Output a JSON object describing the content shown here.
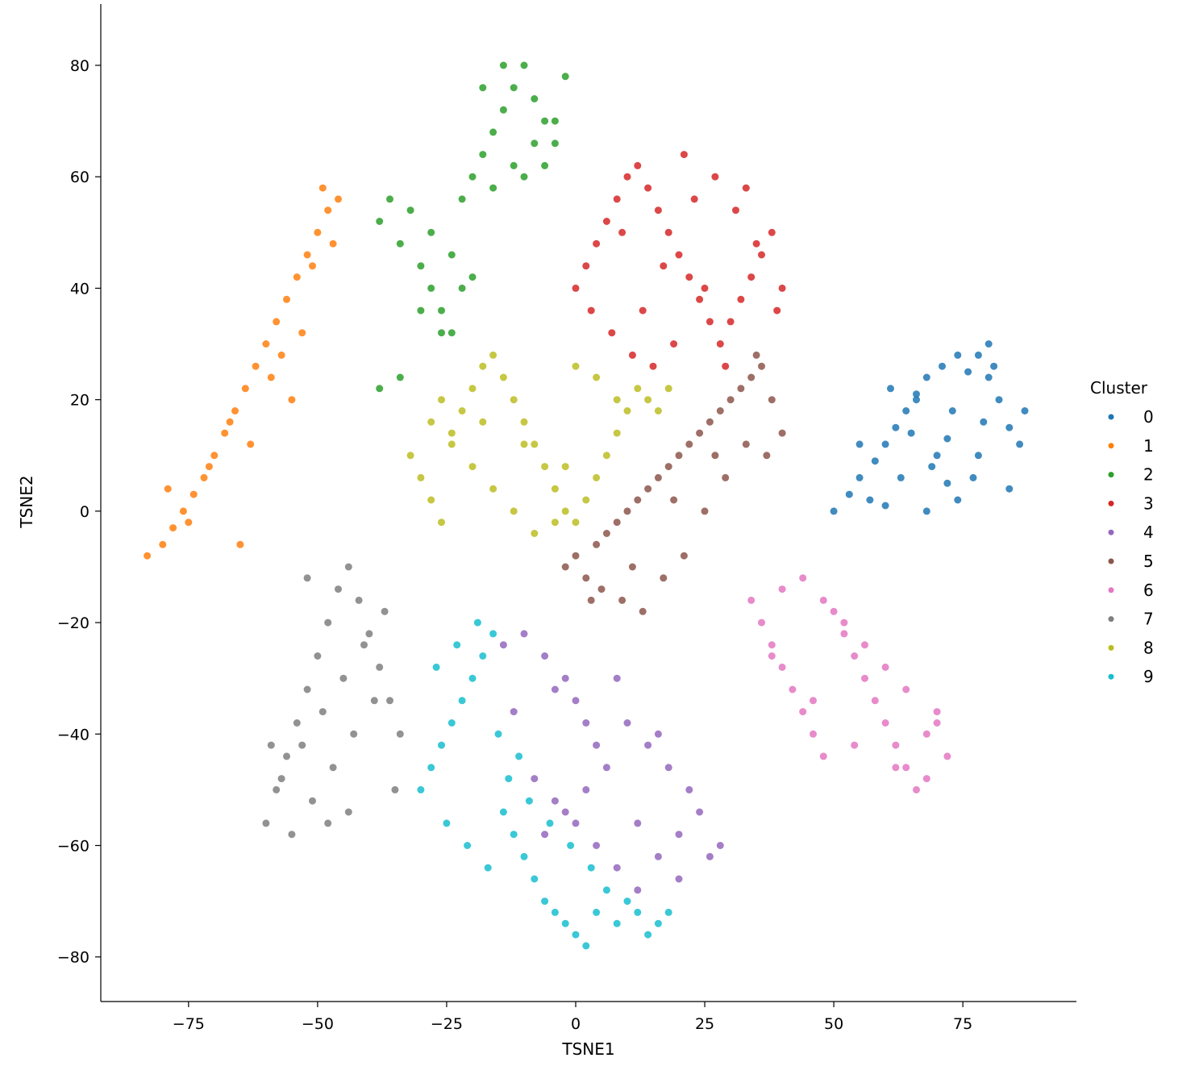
{
  "chart_data": {
    "type": "scatter",
    "title": "",
    "xlabel": "TSNE1",
    "ylabel": "TSNE2",
    "xlim": [
      -92,
      97
    ],
    "ylim": [
      -88,
      91
    ],
    "xticks": [
      -75,
      -50,
      -25,
      0,
      25,
      50,
      75
    ],
    "yticks": [
      -80,
      -60,
      -40,
      -20,
      0,
      20,
      40,
      60,
      80
    ],
    "grid": false,
    "legend": {
      "title": "Cluster",
      "placement": "right",
      "entries": [
        "0",
        "1",
        "2",
        "3",
        "4",
        "5",
        "6",
        "7",
        "8",
        "9"
      ]
    },
    "colors": [
      "#1f77b4",
      "#ff7f0e",
      "#2ca02c",
      "#d62728",
      "#9467bd",
      "#8c564b",
      "#e377c2",
      "#7f7f7f",
      "#bcbd22",
      "#17becf"
    ],
    "series": [
      {
        "name": "0",
        "x": [
          50,
          53,
          55,
          58,
          60,
          62,
          64,
          66,
          68,
          70,
          72,
          74,
          76,
          78,
          80,
          82,
          84,
          86,
          57,
          61,
          65,
          69,
          73,
          77,
          81,
          60,
          66,
          72,
          78,
          84,
          55,
          63,
          71,
          79,
          87,
          68,
          74,
          80
        ],
        "y": [
          0,
          3,
          6,
          9,
          12,
          15,
          18,
          21,
          24,
          10,
          5,
          2,
          25,
          28,
          30,
          20,
          15,
          12,
          2,
          22,
          14,
          8,
          18,
          6,
          26,
          1,
          20,
          13,
          10,
          4,
          12,
          6,
          26,
          16,
          18,
          0,
          28,
          24
        ]
      },
      {
        "name": "1",
        "x": [
          -83,
          -80,
          -78,
          -76,
          -74,
          -72,
          -70,
          -68,
          -66,
          -64,
          -62,
          -60,
          -58,
          -56,
          -54,
          -52,
          -50,
          -48,
          -46,
          -75,
          -71,
          -67,
          -63,
          -59,
          -55,
          -51,
          -47,
          -79,
          -65,
          -57,
          -53,
          -49
        ],
        "y": [
          -8,
          -6,
          -3,
          0,
          3,
          6,
          10,
          14,
          18,
          22,
          26,
          30,
          34,
          38,
          42,
          46,
          50,
          54,
          56,
          -2,
          8,
          16,
          12,
          24,
          20,
          44,
          48,
          4,
          -6,
          28,
          32,
          58
        ]
      },
      {
        "name": "2",
        "x": [
          -38,
          -34,
          -30,
          -28,
          -26,
          -24,
          -22,
          -20,
          -18,
          -16,
          -14,
          -12,
          -10,
          -8,
          -6,
          -4,
          -2,
          -36,
          -32,
          -28,
          -24,
          -20,
          -16,
          -12,
          -8,
          -4,
          -30,
          -26,
          -22,
          -18,
          -14,
          -10,
          -6,
          -34,
          -38
        ],
        "y": [
          52,
          48,
          44,
          40,
          36,
          32,
          56,
          60,
          64,
          68,
          72,
          76,
          80,
          74,
          70,
          66,
          78,
          56,
          54,
          50,
          46,
          42,
          58,
          62,
          66,
          70,
          36,
          32,
          40,
          76,
          80,
          60,
          62,
          24,
          22
        ]
      },
      {
        "name": "3",
        "x": [
          0,
          2,
          4,
          6,
          8,
          10,
          12,
          14,
          16,
          18,
          20,
          22,
          24,
          26,
          28,
          30,
          32,
          34,
          36,
          38,
          40,
          3,
          7,
          11,
          15,
          19,
          23,
          27,
          31,
          35,
          39,
          9,
          17,
          25,
          33,
          13,
          21,
          29
        ],
        "y": [
          40,
          44,
          48,
          52,
          56,
          60,
          62,
          58,
          54,
          50,
          46,
          42,
          38,
          34,
          30,
          34,
          38,
          42,
          46,
          50,
          40,
          36,
          32,
          28,
          26,
          30,
          56,
          60,
          54,
          48,
          36,
          50,
          44,
          40,
          58,
          36,
          64,
          26
        ]
      },
      {
        "name": "4",
        "x": [
          -14,
          -10,
          -6,
          -2,
          0,
          2,
          4,
          -8,
          -4,
          0,
          4,
          8,
          12,
          16,
          20,
          24,
          22,
          18,
          14,
          10,
          6,
          2,
          -2,
          -6,
          26,
          28,
          20,
          12,
          8,
          16,
          -12,
          -4
        ],
        "y": [
          -24,
          -22,
          -26,
          -30,
          -34,
          -38,
          -42,
          -48,
          -52,
          -56,
          -60,
          -64,
          -68,
          -62,
          -58,
          -54,
          -50,
          -46,
          -42,
          -38,
          -46,
          -50,
          -54,
          -58,
          -62,
          -60,
          -66,
          -56,
          -30,
          -40,
          -36,
          -32
        ]
      },
      {
        "name": "5",
        "x": [
          -2,
          0,
          2,
          4,
          6,
          8,
          10,
          12,
          14,
          16,
          18,
          20,
          22,
          24,
          26,
          28,
          30,
          32,
          34,
          36,
          38,
          40,
          5,
          9,
          13,
          17,
          21,
          25,
          29,
          33,
          37,
          3,
          11,
          19,
          27,
          35
        ],
        "y": [
          -10,
          -8,
          -12,
          -6,
          -4,
          -2,
          0,
          2,
          4,
          6,
          8,
          10,
          12,
          14,
          16,
          18,
          20,
          22,
          24,
          26,
          20,
          14,
          -14,
          -16,
          -18,
          -12,
          -8,
          0,
          6,
          12,
          10,
          -16,
          -10,
          2,
          10,
          28
        ]
      },
      {
        "name": "6",
        "x": [
          34,
          36,
          38,
          40,
          42,
          44,
          46,
          48,
          50,
          52,
          54,
          56,
          58,
          60,
          62,
          64,
          66,
          68,
          70,
          72,
          40,
          44,
          48,
          52,
          56,
          60,
          64,
          68,
          38,
          46,
          54,
          62,
          70
        ],
        "y": [
          -16,
          -20,
          -24,
          -28,
          -32,
          -36,
          -40,
          -44,
          -18,
          -22,
          -26,
          -30,
          -34,
          -38,
          -42,
          -46,
          -50,
          -40,
          -36,
          -44,
          -14,
          -12,
          -16,
          -20,
          -24,
          -28,
          -32,
          -48,
          -26,
          -34,
          -42,
          -46,
          -38
        ]
      },
      {
        "name": "7",
        "x": [
          -60,
          -58,
          -56,
          -54,
          -52,
          -50,
          -48,
          -46,
          -44,
          -42,
          -40,
          -38,
          -36,
          -34,
          -57,
          -53,
          -49,
          -45,
          -41,
          -37,
          -55,
          -51,
          -47,
          -43,
          -39,
          -59,
          -35,
          -48,
          -52,
          -44
        ],
        "y": [
          -56,
          -50,
          -44,
          -38,
          -32,
          -26,
          -20,
          -14,
          -10,
          -16,
          -22,
          -28,
          -34,
          -40,
          -48,
          -42,
          -36,
          -30,
          -24,
          -18,
          -58,
          -52,
          -46,
          -40,
          -34,
          -42,
          -50,
          -56,
          -12,
          -54
        ]
      },
      {
        "name": "8",
        "x": [
          -32,
          -30,
          -28,
          -26,
          -24,
          -22,
          -20,
          -18,
          -16,
          -14,
          -12,
          -10,
          -8,
          -6,
          -4,
          -2,
          0,
          2,
          4,
          6,
          8,
          10,
          12,
          14,
          16,
          18,
          -28,
          -24,
          -20,
          -16,
          -12,
          -8,
          -4,
          0,
          4,
          8,
          -26,
          -18,
          -10,
          -2
        ],
        "y": [
          10,
          6,
          2,
          -2,
          14,
          18,
          22,
          26,
          28,
          24,
          20,
          16,
          12,
          8,
          4,
          0,
          -2,
          2,
          6,
          10,
          14,
          18,
          22,
          20,
          18,
          22,
          16,
          12,
          8,
          4,
          0,
          -4,
          -2,
          26,
          24,
          20,
          20,
          16,
          12,
          8
        ]
      },
      {
        "name": "9",
        "x": [
          -30,
          -28,
          -26,
          -24,
          -22,
          -20,
          -18,
          -16,
          -14,
          -12,
          -10,
          -8,
          -6,
          -4,
          -2,
          0,
          2,
          4,
          6,
          8,
          10,
          12,
          14,
          16,
          18,
          -25,
          -21,
          -17,
          -13,
          -9,
          -5,
          -1,
          3,
          -27,
          -23,
          -19,
          -15,
          -11
        ],
        "y": [
          -50,
          -46,
          -42,
          -38,
          -34,
          -30,
          -26,
          -22,
          -54,
          -58,
          -62,
          -66,
          -70,
          -72,
          -74,
          -76,
          -78,
          -72,
          -68,
          -74,
          -70,
          -72,
          -76,
          -74,
          -72,
          -56,
          -60,
          -64,
          -48,
          -52,
          -56,
          -60,
          -64,
          -28,
          -24,
          -20,
          -40,
          -44
        ]
      }
    ]
  }
}
